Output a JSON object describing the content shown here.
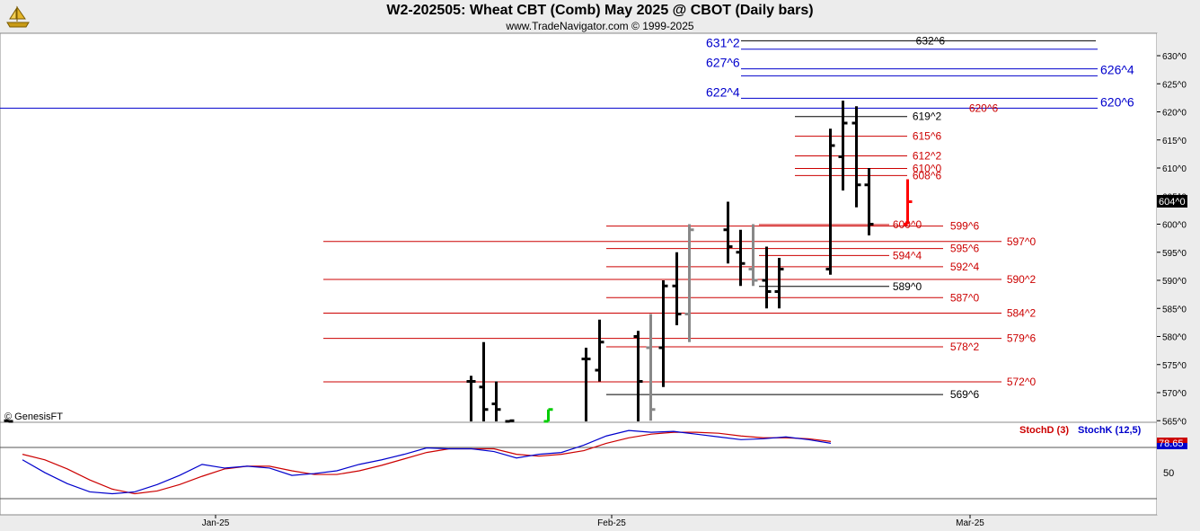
{
  "header": {
    "title": "W2-202505:  Wheat CBT (Comb) May 2025 @ CBOT  (Daily bars)",
    "subtitle": "www.TradeNavigator.com © 1999-2025",
    "logo_icon": "gold-ship-logo-icon"
  },
  "colors": {
    "up_bar": "#000000",
    "down_bar": "#888888",
    "last_bar": "#ff0000",
    "green_bar": "#00cc00",
    "support_line": "#cc0000",
    "projection_line": "#0000cc",
    "stoch_d": "#cc0000",
    "stoch_k": "#0000cc"
  },
  "chart_data": [
    {
      "type": "ohlc",
      "title": "",
      "x_tick_labels": [
        "Jan-25",
        "Feb-25",
        "Mar-25"
      ],
      "y_ticks": [
        "565^0",
        "570^0",
        "575^0",
        "580^0",
        "585^0",
        "590^0",
        "595^0",
        "600^0",
        "605^0",
        "610^0",
        "615^0",
        "620^0",
        "625^0",
        "630^0"
      ],
      "ylim": [
        563.5,
        634
      ],
      "last_price_label": "604^0",
      "copyright": "© GenesisFT",
      "bars": [
        {
          "date": "2024-12-16",
          "o": 565,
          "h": 565,
          "l": 564,
          "c": 564,
          "color": "up"
        },
        {
          "date": "2025-01-21",
          "o": 572,
          "h": 573,
          "l": 564,
          "c": 572,
          "color": "up"
        },
        {
          "date": "2025-01-22",
          "o": 571,
          "h": 579,
          "l": 564,
          "c": 567,
          "color": "up"
        },
        {
          "date": "2025-01-23",
          "o": 568,
          "h": 572,
          "l": 564,
          "c": 567,
          "color": "up"
        },
        {
          "date": "2025-01-24",
          "o": 564,
          "h": 565,
          "l": 564,
          "c": 565,
          "color": "up"
        },
        {
          "date": "2025-01-27",
          "o": 564,
          "h": 567,
          "l": 564,
          "c": 567,
          "color": "green"
        },
        {
          "date": "2025-01-30",
          "o": 576,
          "h": 578,
          "l": 564,
          "c": 576,
          "color": "up"
        },
        {
          "date": "2025-01-31",
          "o": 574,
          "h": 583,
          "l": 572,
          "c": 579,
          "color": "up"
        },
        {
          "date": "2025-02-03",
          "o": 580,
          "h": 581,
          "l": 564,
          "c": 572,
          "color": "up"
        },
        {
          "date": "2025-02-04",
          "o": 578,
          "h": 584,
          "l": 565,
          "c": 567,
          "color": "down"
        },
        {
          "date": "2025-02-05",
          "o": 578,
          "h": 590,
          "l": 571,
          "c": 589,
          "color": "up"
        },
        {
          "date": "2025-02-06",
          "o": 589,
          "h": 595,
          "l": 582,
          "c": 584,
          "color": "up"
        },
        {
          "date": "2025-02-07",
          "o": 584,
          "h": 600,
          "l": 579,
          "c": 599,
          "color": "down"
        },
        {
          "date": "2025-02-10",
          "o": 599,
          "h": 604,
          "l": 593,
          "c": 596,
          "color": "up"
        },
        {
          "date": "2025-02-11",
          "o": 595,
          "h": 599,
          "l": 589,
          "c": 593,
          "color": "up"
        },
        {
          "date": "2025-02-12",
          "o": 592,
          "h": 600,
          "l": 589,
          "c": 590,
          "color": "down"
        },
        {
          "date": "2025-02-13",
          "o": 590,
          "h": 596,
          "l": 585,
          "c": 588,
          "color": "up"
        },
        {
          "date": "2025-02-14",
          "o": 588,
          "h": 594,
          "l": 585,
          "c": 592,
          "color": "up"
        },
        {
          "date": "2025-02-18",
          "o": 592,
          "h": 617,
          "l": 591,
          "c": 614,
          "color": "up"
        },
        {
          "date": "2025-02-19",
          "o": 612,
          "h": 622,
          "l": 606,
          "c": 618,
          "color": "up"
        },
        {
          "date": "2025-02-20",
          "o": 618,
          "h": 621,
          "l": 603,
          "c": 607,
          "color": "up"
        },
        {
          "date": "2025-02-21",
          "o": 607,
          "h": 610,
          "l": 598,
          "c": 600,
          "color": "up"
        },
        {
          "date": "2025-02-24",
          "o": 600,
          "h": 608,
          "l": 600,
          "c": 604,
          "color": "last"
        }
      ],
      "horizontal_levels": [
        {
          "label": "632^6",
          "value": 632.75,
          "color": "black"
        },
        {
          "label": "631^2",
          "value": 631.25,
          "color": "blue"
        },
        {
          "label": "627^6",
          "value": 627.75,
          "color": "blue"
        },
        {
          "label": "626^4",
          "value": 626.5,
          "color": "blue"
        },
        {
          "label": "622^4",
          "value": 622.5,
          "color": "blue"
        },
        {
          "label": "620^6",
          "value": 620.75,
          "color": "blue"
        },
        {
          "label": "620^6",
          "value": 620.75,
          "color": "red"
        },
        {
          "label": "619^2",
          "value": 619.25,
          "color": "black"
        },
        {
          "label": "615^6",
          "value": 615.75,
          "color": "red"
        },
        {
          "label": "612^2",
          "value": 612.25,
          "color": "red"
        },
        {
          "label": "610^0",
          "value": 610.0,
          "color": "red"
        },
        {
          "label": "608^6",
          "value": 608.75,
          "color": "red"
        },
        {
          "label": "600^0",
          "value": 600.0,
          "color": "red"
        },
        {
          "label": "599^6",
          "value": 599.75,
          "color": "red"
        },
        {
          "label": "597^0",
          "value": 597.0,
          "color": "red"
        },
        {
          "label": "595^6",
          "value": 595.75,
          "color": "red"
        },
        {
          "label": "594^4",
          "value": 594.5,
          "color": "red"
        },
        {
          "label": "592^4",
          "value": 592.5,
          "color": "red"
        },
        {
          "label": "590^2",
          "value": 590.25,
          "color": "red"
        },
        {
          "label": "589^0",
          "value": 589.0,
          "color": "black"
        },
        {
          "label": "587^0",
          "value": 587.0,
          "color": "red"
        },
        {
          "label": "584^2",
          "value": 584.25,
          "color": "red"
        },
        {
          "label": "579^6",
          "value": 579.75,
          "color": "red"
        },
        {
          "label": "578^2",
          "value": 578.25,
          "color": "red"
        },
        {
          "label": "572^0",
          "value": 572.0,
          "color": "red"
        },
        {
          "label": "569^6",
          "value": 569.75,
          "color": "black"
        }
      ]
    },
    {
      "type": "line",
      "title": "",
      "y_tick_labels": [
        "50"
      ],
      "ylim": [
        0,
        100
      ],
      "last_value_label": "78.65",
      "series": [
        {
          "name": "StochD (3)",
          "color": "red",
          "values": [
            [
              0,
              68
            ],
            [
              1,
              62
            ],
            [
              2,
              52
            ],
            [
              3,
              40
            ],
            [
              4,
              30
            ],
            [
              5,
              25
            ],
            [
              6,
              28
            ],
            [
              7,
              35
            ],
            [
              8,
              44
            ],
            [
              9,
              52
            ],
            [
              10,
              55
            ],
            [
              11,
              55
            ],
            [
              12,
              50
            ],
            [
              13,
              46
            ],
            [
              14,
              46
            ],
            [
              15,
              50
            ],
            [
              16,
              56
            ],
            [
              17,
              63
            ],
            [
              18,
              70
            ],
            [
              19,
              74
            ],
            [
              20,
              74
            ],
            [
              21,
              74
            ],
            [
              22,
              68
            ],
            [
              23,
              66
            ],
            [
              24,
              68
            ],
            [
              25,
              72
            ],
            [
              26,
              80
            ],
            [
              27,
              86
            ],
            [
              28,
              90
            ],
            [
              29,
              92
            ],
            [
              30,
              92
            ],
            [
              31,
              91
            ],
            [
              32,
              88
            ],
            [
              33,
              86
            ],
            [
              34,
              86
            ],
            [
              35,
              85
            ],
            [
              36,
              82
            ]
          ]
        },
        {
          "name": "StochK (12,5)",
          "color": "blue",
          "values": [
            [
              0,
              62
            ],
            [
              1,
              48
            ],
            [
              2,
              36
            ],
            [
              3,
              27
            ],
            [
              4,
              25
            ],
            [
              5,
              27
            ],
            [
              6,
              35
            ],
            [
              7,
              45
            ],
            [
              8,
              57
            ],
            [
              9,
              53
            ],
            [
              10,
              55
            ],
            [
              11,
              53
            ],
            [
              12,
              45
            ],
            [
              13,
              47
            ],
            [
              14,
              50
            ],
            [
              15,
              57
            ],
            [
              16,
              62
            ],
            [
              17,
              68
            ],
            [
              18,
              75
            ],
            [
              19,
              74
            ],
            [
              20,
              74
            ],
            [
              21,
              71
            ],
            [
              22,
              64
            ],
            [
              23,
              68
            ],
            [
              24,
              70
            ],
            [
              25,
              78
            ],
            [
              26,
              88
            ],
            [
              27,
              94
            ],
            [
              28,
              92
            ],
            [
              29,
              93
            ],
            [
              30,
              90
            ],
            [
              31,
              87
            ],
            [
              32,
              84
            ],
            [
              33,
              85
            ],
            [
              34,
              87
            ],
            [
              35,
              84
            ],
            [
              36,
              80
            ]
          ]
        }
      ]
    }
  ]
}
